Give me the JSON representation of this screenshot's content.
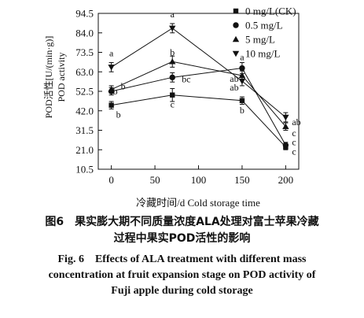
{
  "chart_data": {
    "type": "line",
    "xlabel": "冷藏时间/d Cold storage time",
    "ylabel_zh": "POD活性[U/(min·g)]",
    "ylabel_en": "POD activity",
    "x": [
      0,
      70,
      150,
      200
    ],
    "xticks": [
      "0",
      "50",
      "100",
      "150",
      "200"
    ],
    "xtick_values": [
      0,
      50,
      100,
      150,
      200
    ],
    "xlim": [
      -15,
      215
    ],
    "yticks": [
      "10.5",
      "21.0",
      "31.5",
      "42.0",
      "52.5",
      "63.0",
      "73.5",
      "84.0",
      "94.5"
    ],
    "ytick_values": [
      10.5,
      21.0,
      31.5,
      42.0,
      52.5,
      63.0,
      73.5,
      84.0,
      94.5
    ],
    "ylim": [
      10.5,
      94.5
    ],
    "legend_position": "top-right",
    "series": [
      {
        "name": "0 mg/L(CK)",
        "marker": "square",
        "values": [
          45.0,
          50.5,
          47.5,
          22.5
        ],
        "errors": [
          2.0,
          3.5,
          2.0,
          1.5
        ],
        "labels": [
          "b",
          "c",
          "b",
          "c"
        ]
      },
      {
        "name": "0.5 mg/L",
        "marker": "circle",
        "values": [
          52.5,
          60.0,
          65.0,
          23.5
        ],
        "errors": [
          2.0,
          2.5,
          3.0,
          1.5
        ],
        "labels": [
          "b",
          "bc",
          "a",
          "c"
        ]
      },
      {
        "name": "5 mg/L",
        "marker": "triangle-up",
        "values": [
          53.5,
          68.5,
          61.0,
          33.5
        ],
        "errors": [
          2.0,
          3.0,
          2.5,
          2.0
        ],
        "labels": [
          "b",
          "b",
          "ab",
          "c"
        ]
      },
      {
        "name": "10 mg/L",
        "marker": "triangle-down",
        "values": [
          65.5,
          86.5,
          58.0,
          38.5
        ],
        "errors": [
          2.5,
          2.5,
          2.5,
          2.5
        ],
        "labels": [
          "a",
          "a",
          "ab",
          "ab"
        ]
      }
    ]
  },
  "caption": {
    "zh_line1": "图6　果实膨大期不同质量浓度ALA处理对富士苹果冷藏",
    "zh_line2": "过程中果实POD活性的影响",
    "en_line1": "Fig. 6　Effects of ALA treatment with different mass",
    "en_line2": "concentration at fruit expansion stage on POD activity of",
    "en_line3": "Fuji apple during cold storage"
  }
}
